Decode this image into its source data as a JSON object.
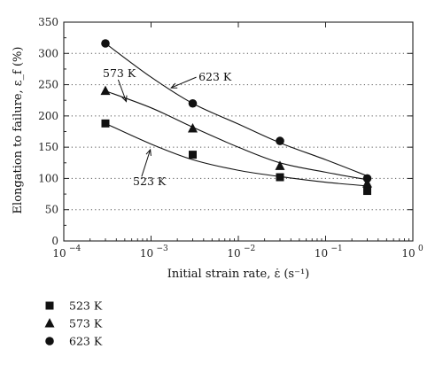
{
  "chart_data": {
    "type": "scatter",
    "xlabel": "Initial strain rate, ε̇ (s⁻¹)",
    "ylabel": "Elongation to failure, ε_f (%)",
    "x_scale": "log",
    "xlim": [
      0.0001,
      1
    ],
    "ylim": [
      0,
      350
    ],
    "grid": "horizontal dotted",
    "legend_position": "below",
    "x_ticks": [
      0.0001,
      0.001,
      0.01,
      0.1,
      1
    ],
    "x_tick_labels": [
      {
        "base": "10",
        "exp": "−4"
      },
      {
        "base": "10",
        "exp": "−3"
      },
      {
        "base": "10",
        "exp": "−2"
      },
      {
        "base": "10",
        "exp": "−1"
      },
      {
        "base": "10",
        "exp": "0"
      }
    ],
    "y_ticks": [
      0,
      50,
      100,
      150,
      200,
      250,
      300,
      350
    ],
    "y_tick_labels": [
      "0",
      "50",
      "100",
      "150",
      "200",
      "250",
      "300",
      "350"
    ],
    "series": [
      {
        "name": "523 K",
        "marker": "square",
        "x": [
          0.0003,
          0.003,
          0.03,
          0.3
        ],
        "y": [
          188,
          138,
          102,
          80
        ],
        "fit": [
          [
            0.0003,
            188
          ],
          [
            0.001,
            155
          ],
          [
            0.003,
            130
          ],
          [
            0.01,
            113
          ],
          [
            0.03,
            103
          ],
          [
            0.1,
            94
          ],
          [
            0.3,
            88
          ]
        ]
      },
      {
        "name": "573 K",
        "marker": "triangle",
        "x": [
          0.0003,
          0.003,
          0.03,
          0.3
        ],
        "y": [
          240,
          180,
          120,
          92
        ],
        "fit": [
          [
            0.0003,
            240
          ],
          [
            0.001,
            213
          ],
          [
            0.003,
            182
          ],
          [
            0.01,
            150
          ],
          [
            0.03,
            125
          ],
          [
            0.1,
            110
          ],
          [
            0.3,
            98
          ]
        ]
      },
      {
        "name": "623 K",
        "marker": "circle",
        "x": [
          0.0003,
          0.003,
          0.03,
          0.3
        ],
        "y": [
          316,
          220,
          160,
          100
        ],
        "fit": [
          [
            0.0003,
            316
          ],
          [
            0.001,
            262
          ],
          [
            0.003,
            220
          ],
          [
            0.01,
            187
          ],
          [
            0.03,
            157
          ],
          [
            0.1,
            130
          ],
          [
            0.3,
            104
          ]
        ]
      }
    ],
    "annotations": [
      {
        "text": "623 K",
        "x": 0.0035,
        "y": 262
      },
      {
        "text": "573 K",
        "x": 0.00028,
        "y": 268
      },
      {
        "text": "523 K",
        "x": 0.00062,
        "y": 95
      }
    ],
    "annotation_arrows": [
      {
        "from": [
          0.0033,
          262
        ],
        "to": [
          0.0017,
          245
        ]
      },
      {
        "from": [
          0.00042,
          258
        ],
        "to": [
          0.00052,
          223
        ]
      },
      {
        "from": [
          0.00078,
          103
        ],
        "to": [
          0.00098,
          146
        ]
      }
    ]
  }
}
